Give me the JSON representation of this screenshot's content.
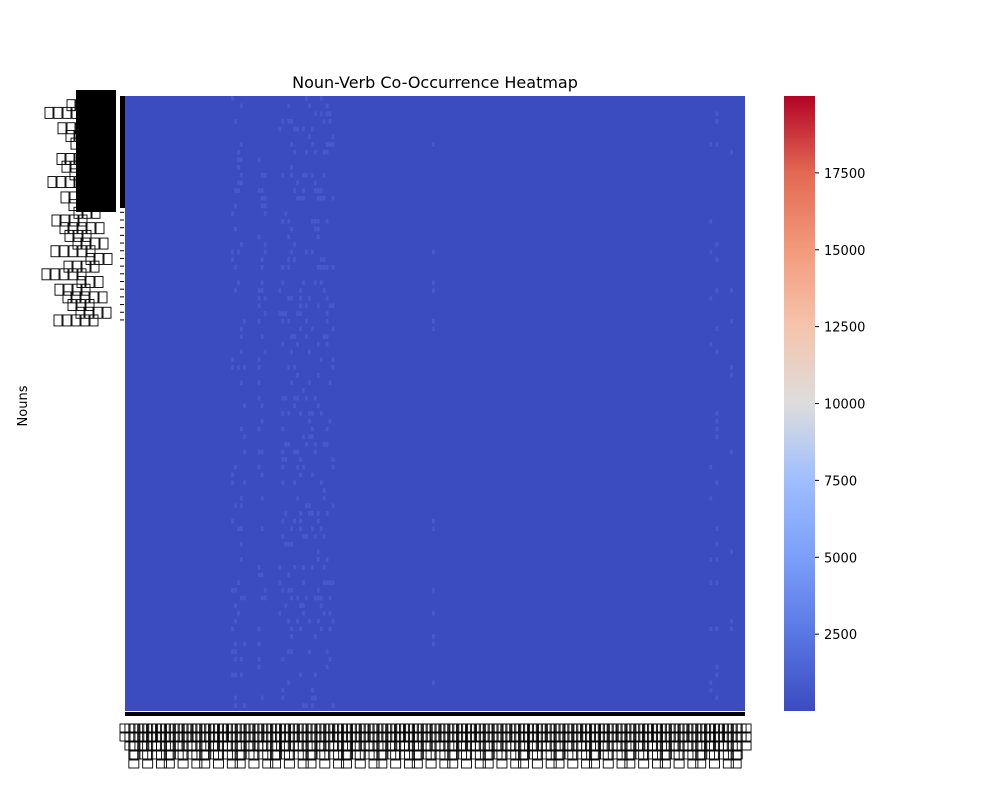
{
  "chart_data": {
    "type": "heatmap",
    "title": "Noun-Verb Co-Occurrence Heatmap",
    "xlabel": "",
    "ylabel": "Nouns",
    "colormap": "coolwarm",
    "colors": {
      "low": "#3b4cc0",
      "mid": "#dddddd",
      "high": "#b40426",
      "sparse_cell": "#4a5ccc"
    },
    "colorbar": {
      "vmin": 0,
      "vmax": 20000,
      "ticks": [
        2500,
        5000,
        7500,
        10000,
        12500,
        15000,
        17500
      ],
      "tick_labels": [
        "2500",
        "5000",
        "7500",
        "10000",
        "12500",
        "15000",
        "17500"
      ]
    },
    "rows": 80,
    "cols": 210,
    "base_value": 0,
    "labels_note": "Row (noun) and column (verb) tick labels are CJK text rendered as missing-glyph boxes; their text is not legible.",
    "grid": false
  }
}
